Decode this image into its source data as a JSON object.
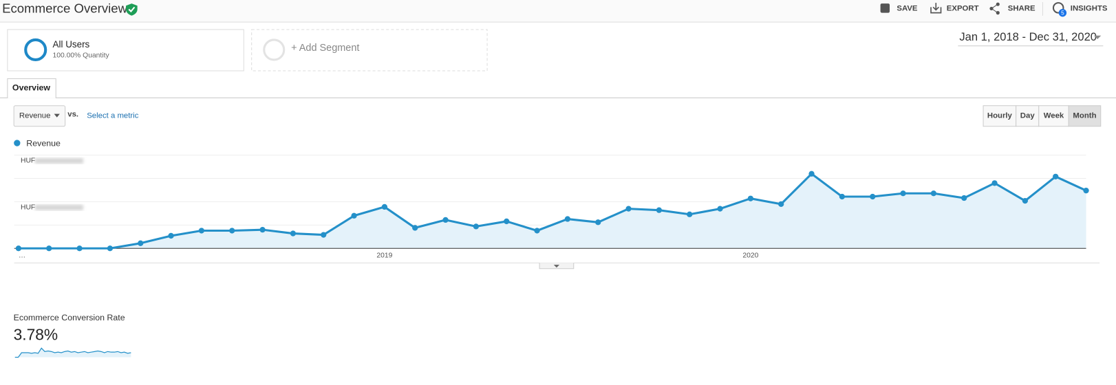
{
  "header": {
    "title": "Ecommerce Overview",
    "actions": [
      "SAVE",
      "EXPORT",
      "SHARE",
      "INSIGHTS"
    ],
    "insights_badge": "5"
  },
  "segments": [
    {
      "name": "All Users",
      "detail": "100.00% Quantity"
    },
    {
      "name": "+ Add Segment"
    }
  ],
  "date_range": "Jan 1, 2018 - Dec 31, 2020",
  "tabs": [
    "Overview"
  ],
  "metric_selector": {
    "selected": "Revenue",
    "vs": "vs.",
    "link": "Select a metric"
  },
  "granularity": {
    "options": [
      "Hourly",
      "Day",
      "Week",
      "Month"
    ],
    "active": "Month"
  },
  "chart_data": {
    "type": "line",
    "categories": [
      "…",
      null,
      null,
      null,
      null,
      null,
      null,
      null,
      null,
      null,
      null,
      null,
      "2019",
      null,
      null,
      null,
      null,
      null,
      null,
      null,
      null,
      null,
      null,
      null,
      "2020",
      null,
      null,
      null,
      null,
      null,
      null,
      null,
      null,
      null,
      null,
      null
    ],
    "series": [
      {
        "name": "Revenue",
        "color": "#2490c9",
        "values": [
          0,
          0,
          0,
          0,
          1.1,
          2.7,
          3.8,
          3.8,
          4.0,
          3.2,
          2.9,
          7.0,
          8.9,
          4.4,
          6.1,
          4.7,
          5.8,
          3.8,
          6.3,
          5.6,
          8.5,
          8.2,
          7.3,
          8.5,
          10.7,
          9.5,
          16.0,
          11.1,
          11.1,
          11.8,
          11.8,
          10.8,
          14.0,
          10.2,
          15.4,
          12.4
        ]
      }
    ],
    "ylim": [
      0,
      20
    ],
    "yticks": [
      {
        "value": 10,
        "label": "HUF"
      },
      {
        "value": 20,
        "label": "HUF"
      }
    ],
    "grid": true,
    "area": true
  },
  "summary": {
    "metric": "Ecommerce Conversion Rate",
    "value": "3.78%",
    "sparkline": {
      "color": "#2490c9",
      "ylim": [
        0,
        10
      ],
      "values": [
        0,
        0,
        4,
        4,
        4,
        3.5,
        4,
        3.5,
        8,
        5,
        5.5,
        5,
        4,
        4.5,
        4,
        5,
        5.5,
        4.5,
        5,
        4,
        4.5,
        5,
        4,
        4.5,
        5,
        5.5,
        5,
        4,
        5,
        4.5,
        4.5,
        5,
        4,
        4.5,
        3.5,
        4
      ]
    }
  }
}
